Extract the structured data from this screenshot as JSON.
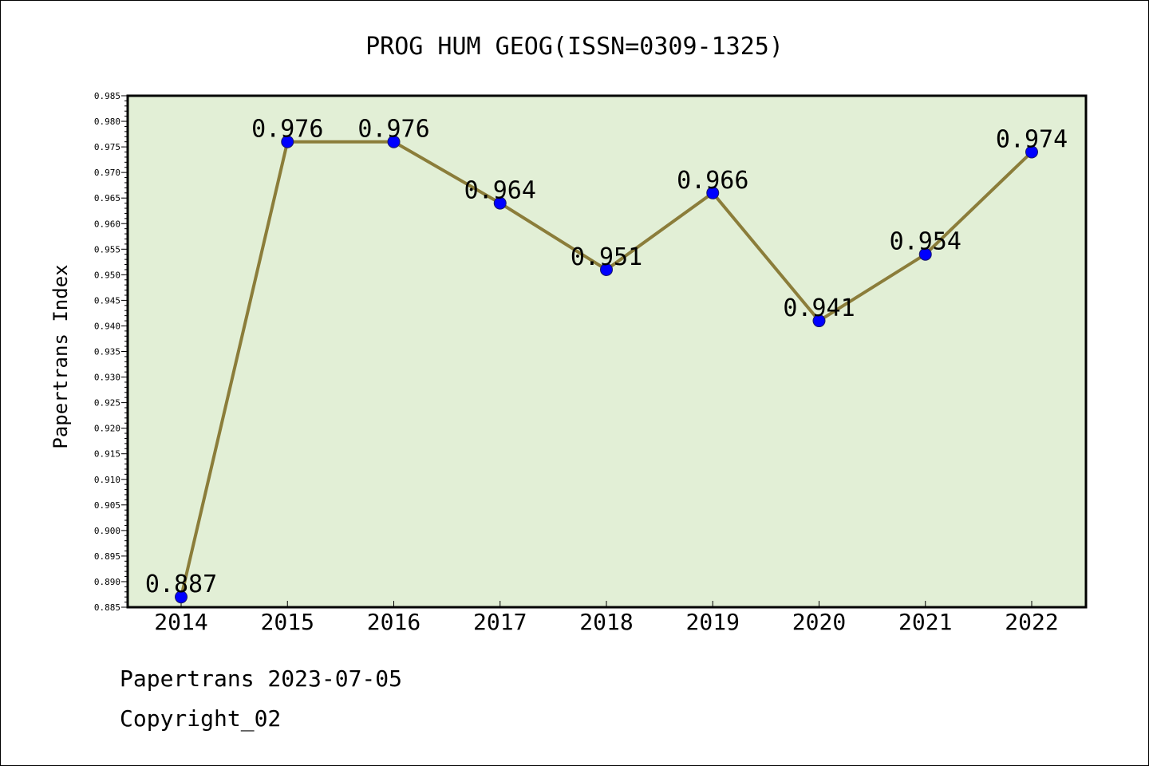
{
  "chart_data": {
    "type": "line",
    "title": "PROG HUM GEOG(ISSN=0309-1325)",
    "xlabel": "",
    "ylabel": "Papertrans Index",
    "categories": [
      "2014",
      "2015",
      "2016",
      "2017",
      "2018",
      "2019",
      "2020",
      "2021",
      "2022"
    ],
    "series": [
      {
        "values": [
          0.887,
          0.976,
          0.976,
          0.964,
          0.951,
          0.966,
          0.941,
          0.954,
          0.974
        ]
      }
    ],
    "data_labels": [
      "0.887",
      "0.976",
      "0.976",
      "0.964",
      "0.951",
      "0.966",
      "0.941",
      "0.954",
      "0.974"
    ],
    "ylim": [
      0.885,
      0.985
    ],
    "yticks": [
      "0.885",
      "0.890",
      "0.895",
      "0.900",
      "0.905",
      "0.910",
      "0.915",
      "0.920",
      "0.925",
      "0.930",
      "0.935",
      "0.940",
      "0.945",
      "0.950",
      "0.955",
      "0.960",
      "0.965",
      "0.970",
      "0.975",
      "0.980",
      "0.985"
    ],
    "grid": false,
    "colors": {
      "plot_bg": "#e2efd6",
      "line": "#8b7d3a",
      "marker": "#0000ff"
    }
  },
  "footer": {
    "date": "Papertrans 2023-07-05",
    "copyright": "Copyright_02"
  }
}
